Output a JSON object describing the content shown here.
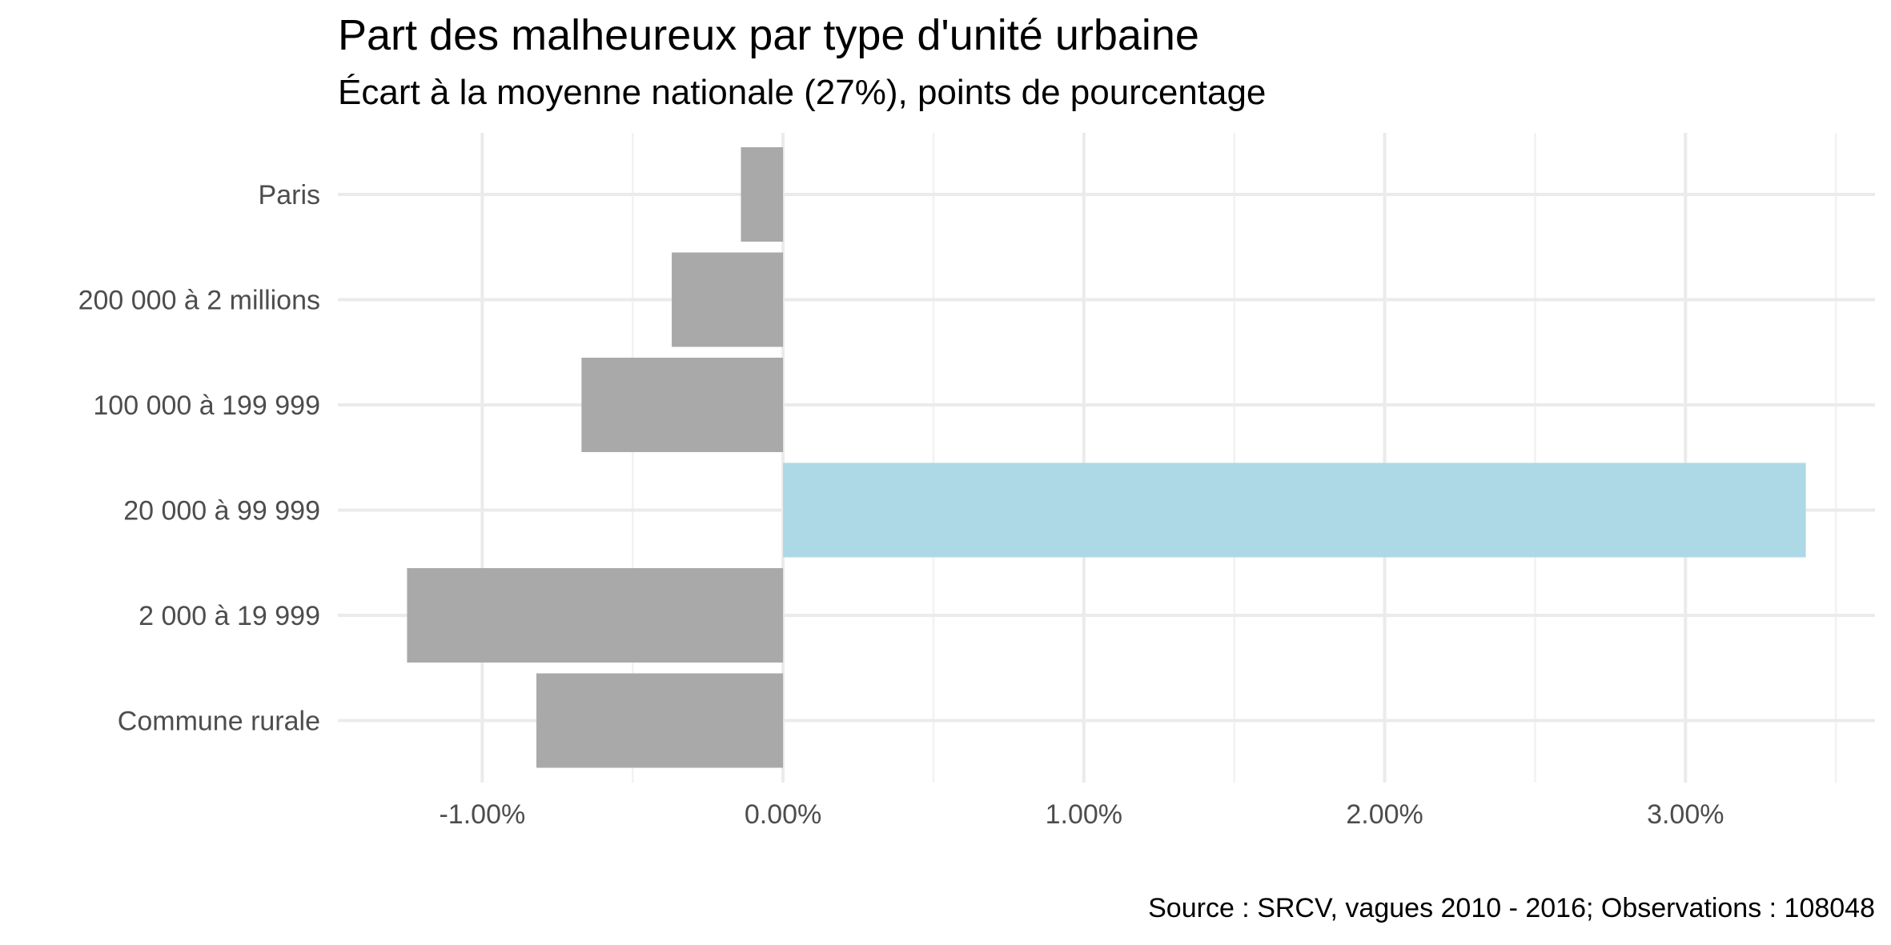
{
  "chart_data": {
    "type": "bar",
    "orientation": "horizontal",
    "title": "Part des malheureux par type d'unité urbaine",
    "subtitle": "Écart à la moyenne nationale (27%), points de pourcentage",
    "caption": "Source : SRCV, vagues 2010 - 2016; Observations : 108048",
    "xlabel": "",
    "ylabel": "",
    "categories": [
      "Paris",
      "200 000 à 2 millions",
      "100 000 à 199 999",
      "20 000 à 99 999",
      "2 000 à 19 999",
      "Commune rurale"
    ],
    "values": [
      -0.14,
      -0.37,
      -0.67,
      3.4,
      -1.25,
      -0.82
    ],
    "colors": [
      "#a9a9a9",
      "#a9a9a9",
      "#a9a9a9",
      "#add8e6",
      "#a9a9a9",
      "#a9a9a9"
    ],
    "xlim": [
      -1.48,
      3.63
    ],
    "x_ticks": [
      -1.0,
      0.0,
      1.0,
      2.0,
      3.0
    ],
    "x_tick_labels": [
      "-1.00%",
      "0.00%",
      "1.00%",
      "2.00%",
      "3.00%"
    ],
    "x_minor_ticks": [
      -0.5,
      0.5,
      1.5,
      2.5,
      3.5
    ],
    "grid": true,
    "legend": "none"
  }
}
